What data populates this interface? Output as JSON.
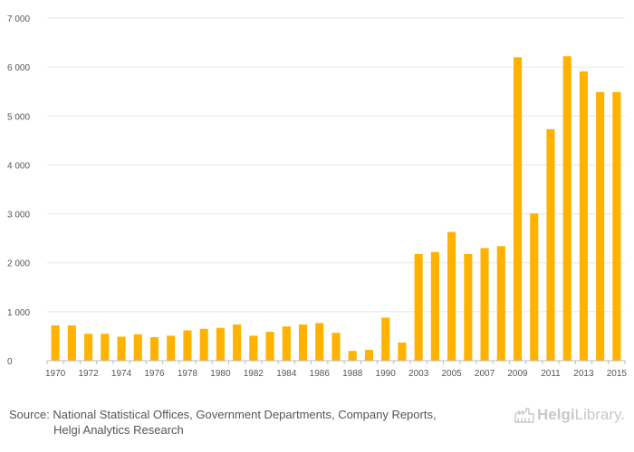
{
  "chart_data": {
    "type": "bar",
    "title": "",
    "xlabel": "",
    "ylabel": "",
    "ylim": [
      0,
      7000
    ],
    "yticks": [
      0,
      1000,
      2000,
      3000,
      4000,
      5000,
      6000,
      7000
    ],
    "ytick_labels": [
      "0",
      "1 000",
      "2 000",
      "3 000",
      "4 000",
      "5 000",
      "6 000",
      "7 000"
    ],
    "categories": [
      "1970",
      "1971",
      "1972",
      "1973",
      "1974",
      "1975",
      "1976",
      "1977",
      "1978",
      "1979",
      "1980",
      "1981",
      "1982",
      "1983",
      "1984",
      "1985",
      "1986",
      "1987",
      "1988",
      "1989",
      "1990",
      "1991",
      "2003",
      "2004",
      "2005",
      "2006",
      "2007",
      "2008",
      "2009",
      "2010",
      "2011",
      "2012",
      "2013",
      "2014",
      "2015"
    ],
    "xtick_labels": [
      "1970",
      "",
      "1972",
      "",
      "1974",
      "",
      "1976",
      "",
      "1978",
      "",
      "1980",
      "",
      "1982",
      "",
      "1984",
      "",
      "1986",
      "",
      "1988",
      "",
      "1990",
      "",
      "2003",
      "",
      "2005",
      "",
      "2007",
      "",
      "2009",
      "",
      "2011",
      "",
      "2013",
      "",
      "2015"
    ],
    "values": [
      720,
      720,
      550,
      550,
      490,
      540,
      480,
      510,
      620,
      650,
      670,
      740,
      510,
      590,
      700,
      740,
      770,
      570,
      200,
      220,
      880,
      370,
      2180,
      2220,
      2630,
      2180,
      2300,
      2340,
      6200,
      3010,
      4730,
      6220,
      5910,
      5490,
      5490
    ],
    "bar_color": "#ffb300",
    "grid": true
  },
  "footer": {
    "source_line1": "Source: National Statistical Offices, Government Departments, Company Reports,",
    "source_line2": "Helgi Analytics Research",
    "logo_part1": "Helgi",
    "logo_part2": "Library."
  }
}
